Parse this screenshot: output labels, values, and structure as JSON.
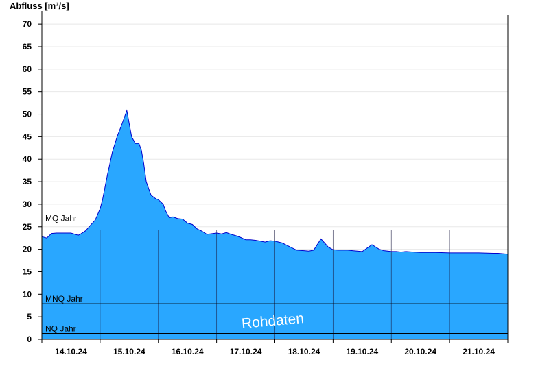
{
  "chart_data": {
    "type": "area",
    "title": "",
    "ylabel": "Abfluss [m³/s]",
    "xlabel": "",
    "ylim": [
      0,
      72
    ],
    "yticks": [
      0,
      5,
      10,
      15,
      20,
      25,
      30,
      35,
      40,
      45,
      50,
      55,
      60,
      65,
      70
    ],
    "xlim": [
      "2024-10-14 00:00",
      "2024-10-22 00:00"
    ],
    "xticks": [
      "14.10.24",
      "15.10.24",
      "16.10.24",
      "17.10.24",
      "18.10.24",
      "19.10.24",
      "20.10.24",
      "21.10.24"
    ],
    "grid": true,
    "fill_color": "#29a7ff",
    "line_color": "#0000cc",
    "reference_lines": [
      {
        "label": "MQ Jahr",
        "value": 25.8,
        "color": "#00802b"
      },
      {
        "label": "MNQ Jahr",
        "value": 7.9,
        "color": "#000000"
      },
      {
        "label": "NQ Jahr",
        "value": 1.3,
        "color": "#000000"
      }
    ],
    "watermark": "Rohdaten",
    "series": [
      {
        "x": [
          "2024-10-14 00:00",
          "2024-10-14 02:00",
          "2024-10-14 04:00",
          "2024-10-14 06:00",
          "2024-10-14 09:00",
          "2024-10-14 12:00",
          "2024-10-14 15:00",
          "2024-10-14 16:00",
          "2024-10-14 18:00",
          "2024-10-14 20:00",
          "2024-10-14 22:00",
          "2024-10-15 00:00",
          "2024-10-15 01:00",
          "2024-10-15 03:00",
          "2024-10-15 05:00",
          "2024-10-15 07:00",
          "2024-10-15 09:00",
          "2024-10-15 11:00",
          "2024-10-15 13:00",
          "2024-10-15 14:30",
          "2024-10-15 16:00",
          "2024-10-15 17:00",
          "2024-10-15 18:00",
          "2024-10-15 19:00",
          "2024-10-15 21:00",
          "2024-10-15 23:00",
          "2024-10-16 00:00",
          "2024-10-16 02:00",
          "2024-10-16 03:00",
          "2024-10-16 04:30",
          "2024-10-16 06:00",
          "2024-10-16 08:00",
          "2024-10-16 10:00",
          "2024-10-16 12:00",
          "2024-10-16 14:00",
          "2024-10-16 16:00",
          "2024-10-16 18:00",
          "2024-10-16 20:00",
          "2024-10-17 00:00",
          "2024-10-17 02:00",
          "2024-10-17 04:00",
          "2024-10-17 06:00",
          "2024-10-17 08:00",
          "2024-10-17 10:00",
          "2024-10-17 12:00",
          "2024-10-17 14:00",
          "2024-10-17 16:00",
          "2024-10-17 18:00",
          "2024-10-17 20:00",
          "2024-10-17 22:00",
          "2024-10-18 00:00",
          "2024-10-18 03:00",
          "2024-10-18 06:00",
          "2024-10-18 09:00",
          "2024-10-18 12:00",
          "2024-10-18 14:00",
          "2024-10-18 16:00",
          "2024-10-18 19:00",
          "2024-10-18 22:00",
          "2024-10-19 00:00",
          "2024-10-19 02:00",
          "2024-10-19 04:00",
          "2024-10-19 06:00",
          "2024-10-19 08:00",
          "2024-10-19 10:00",
          "2024-10-19 12:00",
          "2024-10-19 16:00",
          "2024-10-19 19:00",
          "2024-10-19 21:00",
          "2024-10-20 00:00",
          "2024-10-20 02:00",
          "2024-10-20 04:00",
          "2024-10-20 06:00",
          "2024-10-20 09:00",
          "2024-10-20 12:00",
          "2024-10-20 15:00",
          "2024-10-20 18:00",
          "2024-10-21 00:00",
          "2024-10-21 06:00",
          "2024-10-21 12:00",
          "2024-10-21 18:00",
          "2024-10-21 20:00",
          "2024-10-22 00:00"
        ],
        "values": [
          22.8,
          22.5,
          23.5,
          23.6,
          23.6,
          23.6,
          23.1,
          23.4,
          24.1,
          25.3,
          26.5,
          29.0,
          31.0,
          36.5,
          41.5,
          45.0,
          47.8,
          50.8,
          45.0,
          43.5,
          43.5,
          42.0,
          39.0,
          35.0,
          32.0,
          31.2,
          31.0,
          30.0,
          28.5,
          27.0,
          27.2,
          26.8,
          26.7,
          25.8,
          25.5,
          24.5,
          24.0,
          23.3,
          23.6,
          23.4,
          23.7,
          23.3,
          23.0,
          22.6,
          22.1,
          22.1,
          22.0,
          21.8,
          21.6,
          21.9,
          21.8,
          21.4,
          20.6,
          19.8,
          19.7,
          19.6,
          19.8,
          22.3,
          20.5,
          19.9,
          19.8,
          19.8,
          19.8,
          19.7,
          19.6,
          19.5,
          21.0,
          20.0,
          19.7,
          19.5,
          19.5,
          19.4,
          19.5,
          19.4,
          19.3,
          19.3,
          19.3,
          19.2,
          19.2,
          19.2,
          19.1,
          19.1,
          18.9
        ]
      }
    ]
  }
}
